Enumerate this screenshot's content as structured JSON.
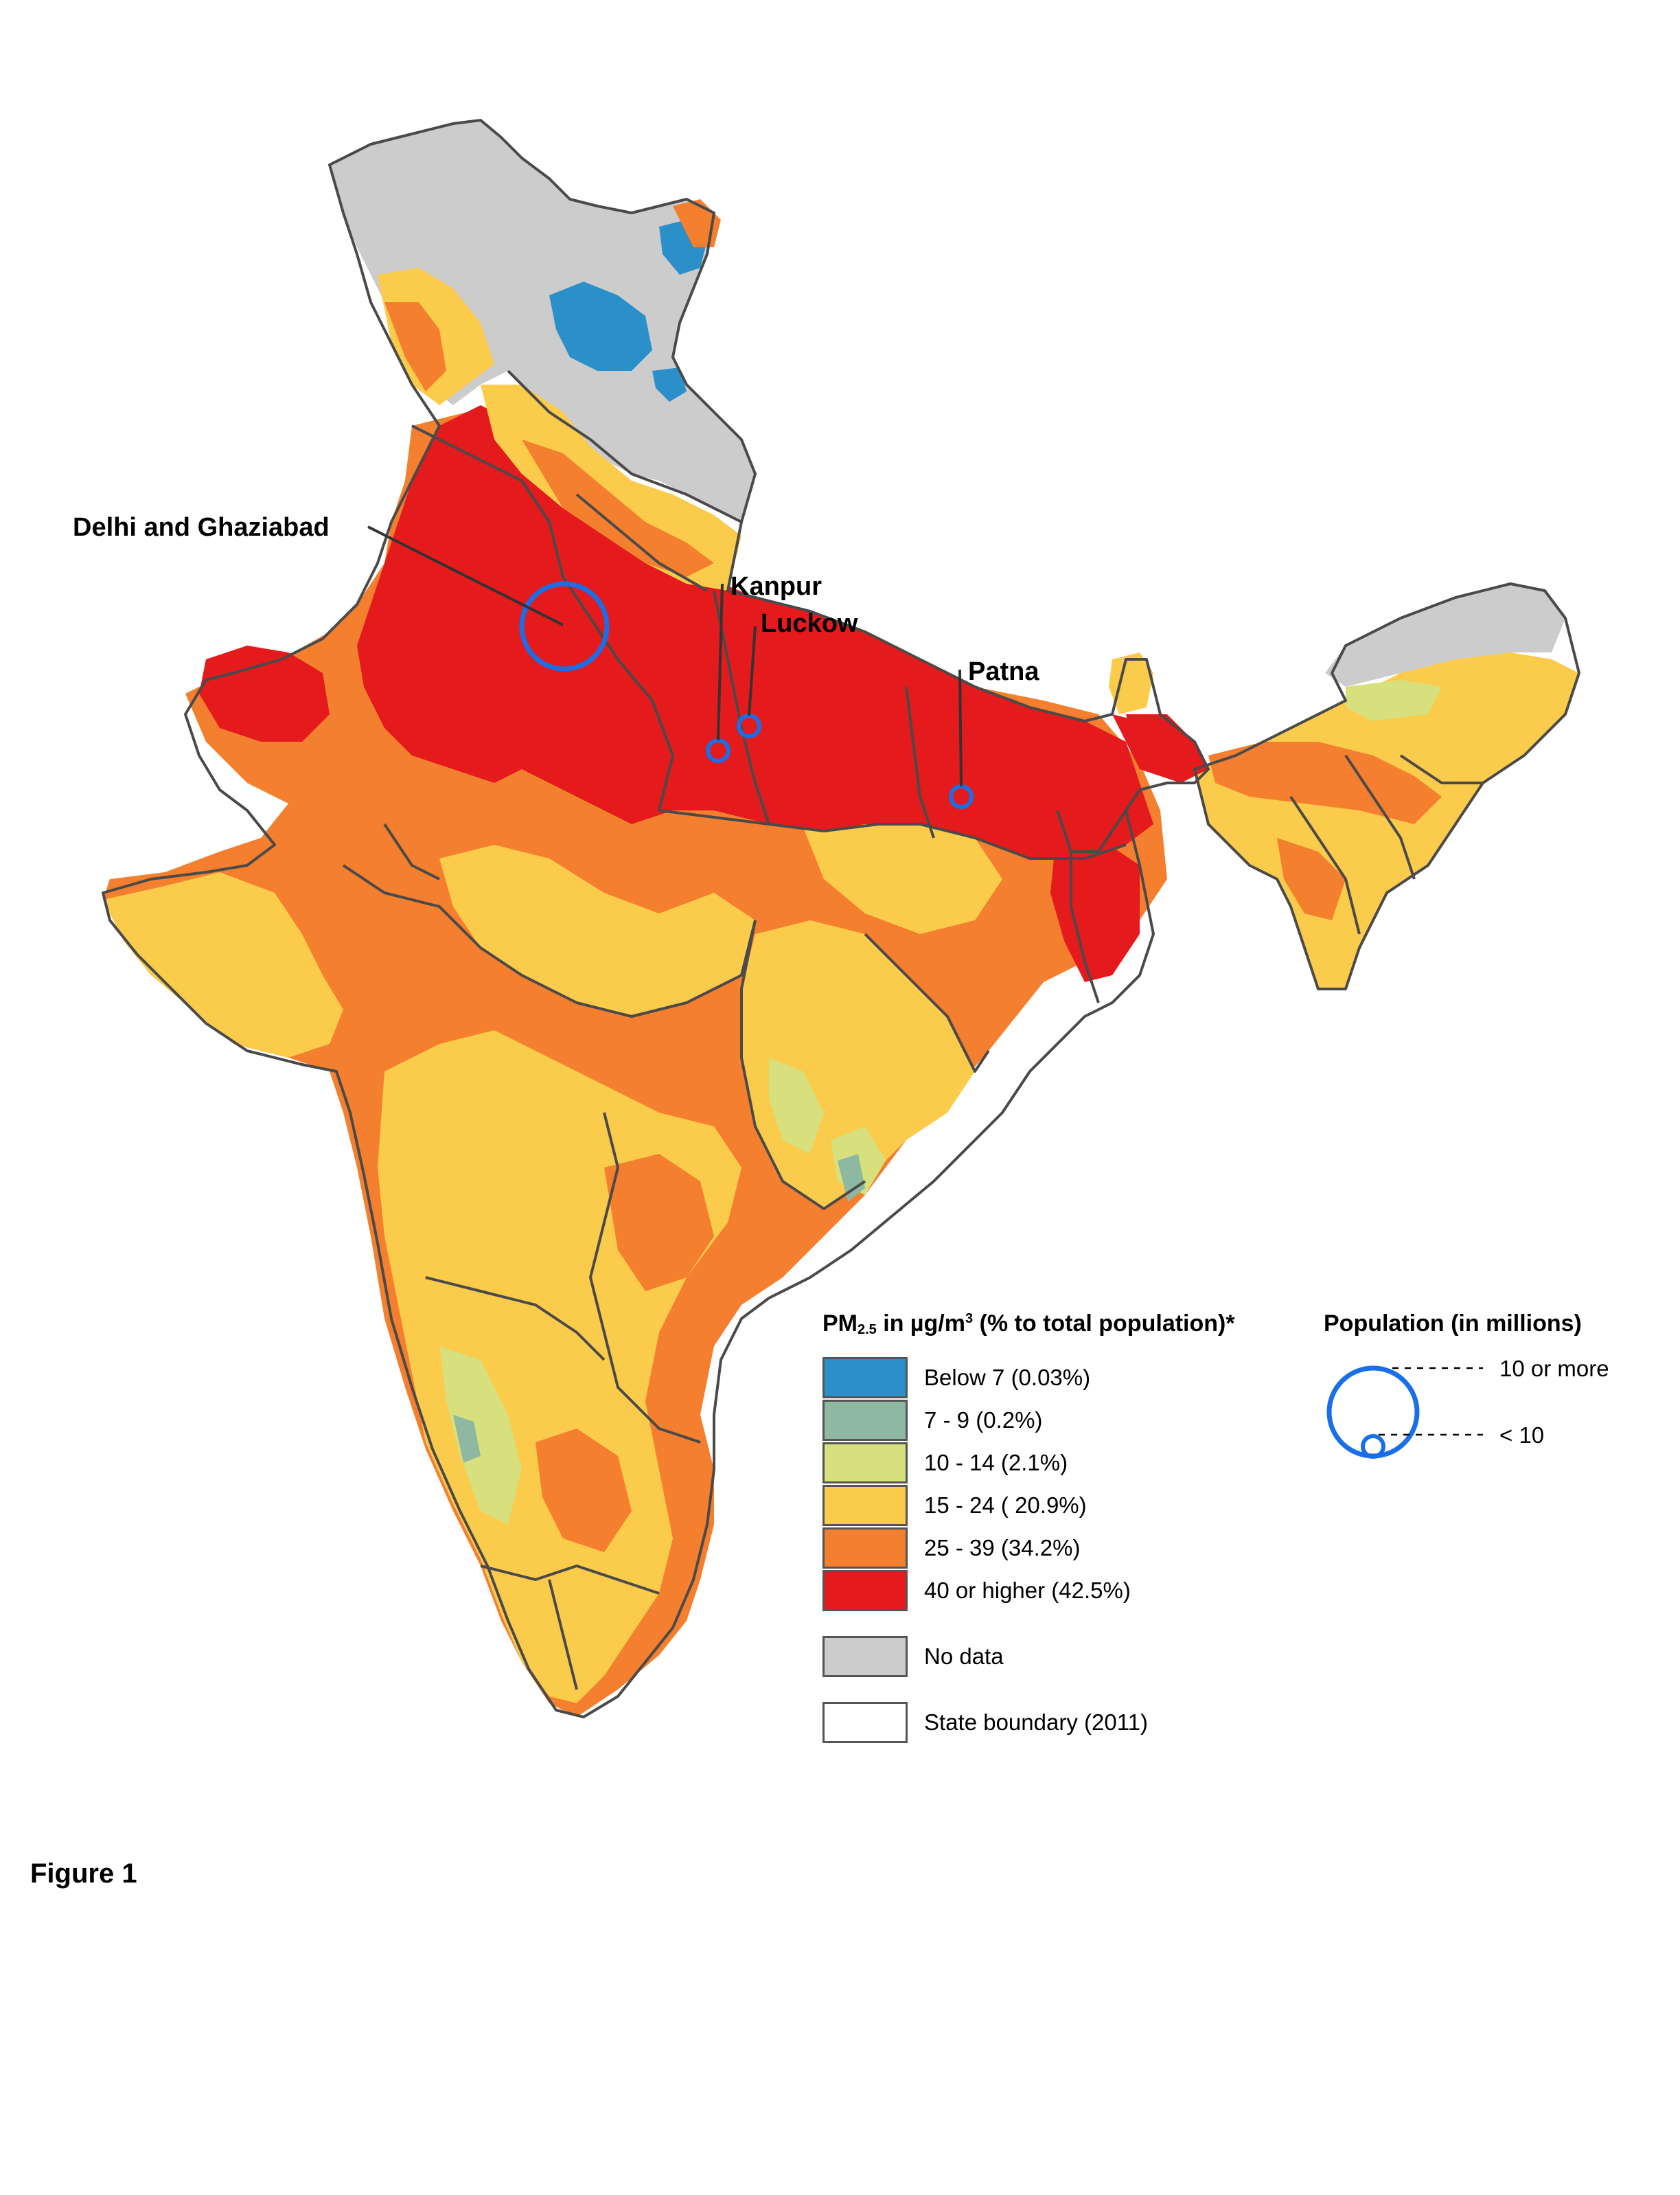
{
  "figure_caption": "Figure 1",
  "cities": [
    {
      "label": "Delhi and Ghaziabad",
      "size": "10 or more"
    },
    {
      "label": "Kanpur",
      "size": "< 10"
    },
    {
      "label": "Luckow",
      "size": "< 10"
    },
    {
      "label": "Patna",
      "size": "< 10"
    }
  ],
  "legend": {
    "title_prefix": "PM",
    "title_subscript": "2.5",
    "title_mid": " in µg/m",
    "title_superscript": "3",
    "title_suffix": " (% to total population)*",
    "classes": [
      {
        "label": "Below 7 (0.03%)",
        "color": "#2b8fca"
      },
      {
        "label": "7 - 9 (0.2%)",
        "color": "#8fb8a2"
      },
      {
        "label": "10 - 14 (2.1%)",
        "color": "#d7e07d"
      },
      {
        "label": "15 - 24 ( 20.9%)",
        "color": "#fbcb4c"
      },
      {
        "label": "25 - 39 (34.2%)",
        "color": "#f47f2e"
      },
      {
        "label": "40 or higher (42.5%)",
        "color": "#e41a1c"
      }
    ],
    "no_data": {
      "label": "No data",
      "color": "#cccccc"
    },
    "boundary": {
      "label": "State boundary (2011)"
    }
  },
  "population_legend": {
    "title": "Population (in millions)",
    "large_label": "10 or more",
    "small_label": "< 10",
    "circle_color": "#1a6fe8"
  }
}
